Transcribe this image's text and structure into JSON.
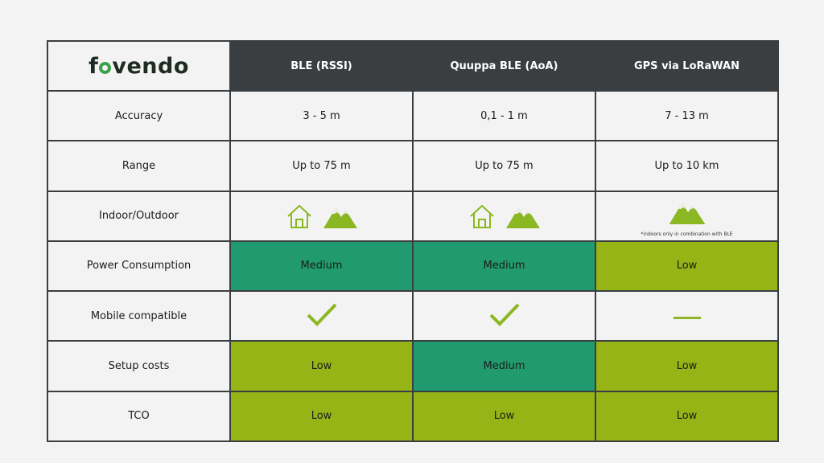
{
  "logo": {
    "text_before": "f",
    "text_after": "vendo"
  },
  "columns": [
    "BLE (RSSI)",
    "Quuppa BLE (AoA)",
    "GPS via LoRaWAN"
  ],
  "rows": [
    {
      "label": "Accuracy",
      "cells": [
        "3 - 5 m",
        "0,1 - 1 m",
        "7 - 13 m"
      ]
    },
    {
      "label": "Range",
      "cells": [
        "Up to 75 m",
        "Up to 75 m",
        "Up to 10 km"
      ]
    },
    {
      "label": "Indoor/Outdoor",
      "cells": [
        "indoor+outdoor",
        "indoor+outdoor",
        "outdoor"
      ],
      "note": "*indoors only in combination with BLE"
    },
    {
      "label": "Power Consumption",
      "cells": [
        "Medium",
        "Medium",
        "Low"
      ]
    },
    {
      "label": "Mobile compatible",
      "cells": [
        "yes",
        "yes",
        "no"
      ]
    },
    {
      "label": "Setup costs",
      "cells": [
        "Low",
        "Medium",
        "Low"
      ]
    },
    {
      "label": "TCO",
      "cells": [
        "Low",
        "Low",
        "Low"
      ]
    }
  ],
  "colors": {
    "header_bg": "#3b3e40",
    "medium_fill": "#209a6e",
    "low_fill": "#97b417",
    "icon_green": "#8bb722",
    "logo_accent": "#3aa14a"
  },
  "icons": {
    "indoor": "house-icon",
    "outdoor": "mountain-icon",
    "yes": "checkmark-icon",
    "no": "dash-icon"
  }
}
